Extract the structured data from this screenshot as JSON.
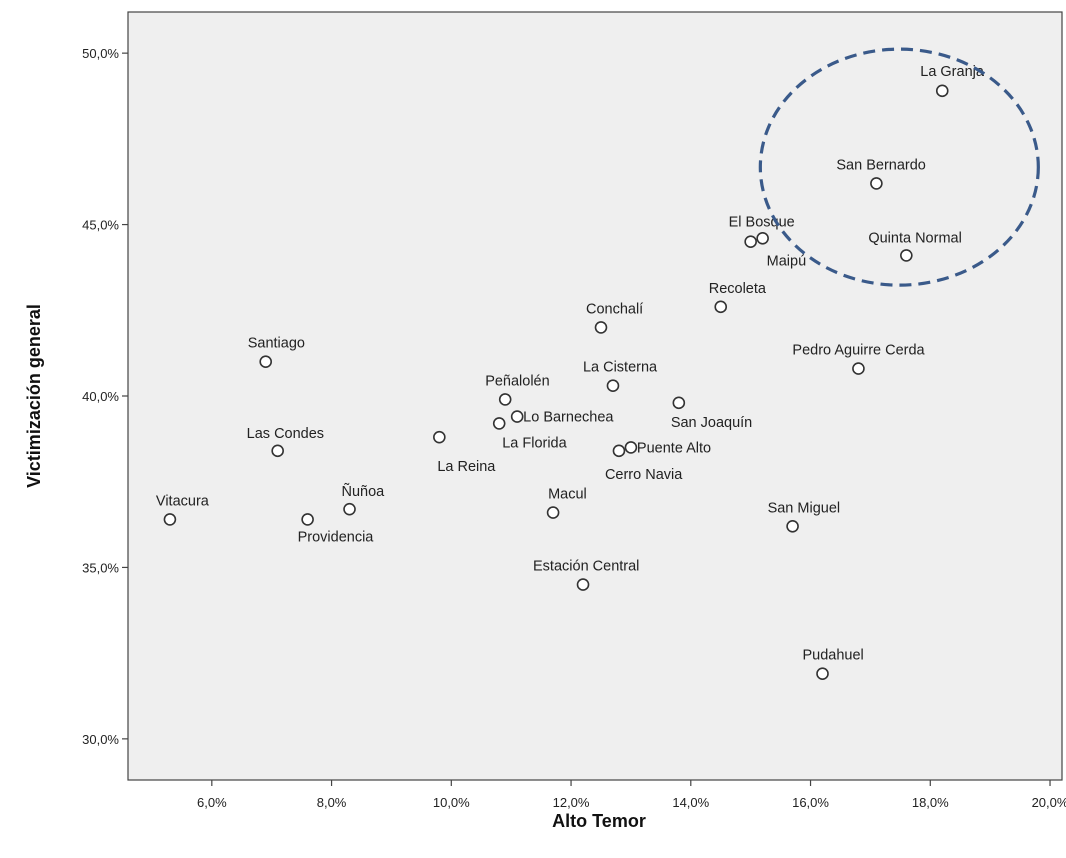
{
  "chart_data": {
    "type": "scatter",
    "title": "",
    "xlabel": "Alto Temor",
    "ylabel": "Victimización general",
    "xlim": [
      4.6,
      20.2
    ],
    "ylim": [
      28.8,
      51.2
    ],
    "x_ticks": [
      6,
      8,
      10,
      12,
      14,
      16,
      18,
      20
    ],
    "y_ticks": [
      30,
      35,
      40,
      45,
      50
    ],
    "x_tick_labels": [
      "6,0%",
      "8,0%",
      "10,0%",
      "12,0%",
      "14,0%",
      "16,0%",
      "18,0%",
      "20,0%"
    ],
    "y_tick_labels": [
      "30,0%",
      "35,0%",
      "40,0%",
      "45,0%",
      "50,0%"
    ],
    "grid": false,
    "colors": {
      "plot_background": "#efefef",
      "marker": "#333333",
      "highlight": "#3a5a8a"
    },
    "points": [
      {
        "label": "La Granja",
        "x": 18.2,
        "y": 48.9
      },
      {
        "label": "San Bernardo",
        "x": 17.1,
        "y": 46.2
      },
      {
        "label": "Quinta Normal",
        "x": 17.6,
        "y": 44.1
      },
      {
        "label": "El Bosque",
        "x": 15.2,
        "y": 44.6
      },
      {
        "label": "Maipú",
        "x": 15.0,
        "y": 44.5
      },
      {
        "label": "Recoleta",
        "x": 14.5,
        "y": 42.6
      },
      {
        "label": "Conchalí",
        "x": 12.5,
        "y": 42.0
      },
      {
        "label": "Santiago",
        "x": 6.9,
        "y": 41.0
      },
      {
        "label": "Pedro Aguirre Cerda",
        "x": 16.8,
        "y": 40.8
      },
      {
        "label": "La Cisterna",
        "x": 12.7,
        "y": 40.3
      },
      {
        "label": "Peñalolén",
        "x": 10.9,
        "y": 39.9
      },
      {
        "label": "San Joaquín",
        "x": 13.8,
        "y": 39.8
      },
      {
        "label": "Lo Barnechea",
        "x": 11.1,
        "y": 39.4
      },
      {
        "label": "La Florida",
        "x": 10.8,
        "y": 39.2
      },
      {
        "label": "La Reina",
        "x": 9.8,
        "y": 38.8
      },
      {
        "label": "Las Condes",
        "x": 7.1,
        "y": 38.4
      },
      {
        "label": "Puente Alto",
        "x": 13.0,
        "y": 38.5
      },
      {
        "label": "Cerro Navia",
        "x": 12.8,
        "y": 38.4
      },
      {
        "label": "Ñuñoa",
        "x": 8.3,
        "y": 36.7
      },
      {
        "label": "Macul",
        "x": 11.7,
        "y": 36.6
      },
      {
        "label": "Vitacura",
        "x": 5.3,
        "y": 36.4
      },
      {
        "label": "Providencia",
        "x": 7.6,
        "y": 36.4
      },
      {
        "label": "San Miguel",
        "x": 15.7,
        "y": 36.2
      },
      {
        "label": "Estación Central",
        "x": 12.2,
        "y": 34.5
      },
      {
        "label": "Pudahuel",
        "x": 16.2,
        "y": 31.9
      }
    ],
    "annotations": [
      {
        "type": "dashed-ellipse",
        "encloses": [
          "La Granja",
          "San Bernardo",
          "Quinta Normal"
        ]
      }
    ]
  }
}
